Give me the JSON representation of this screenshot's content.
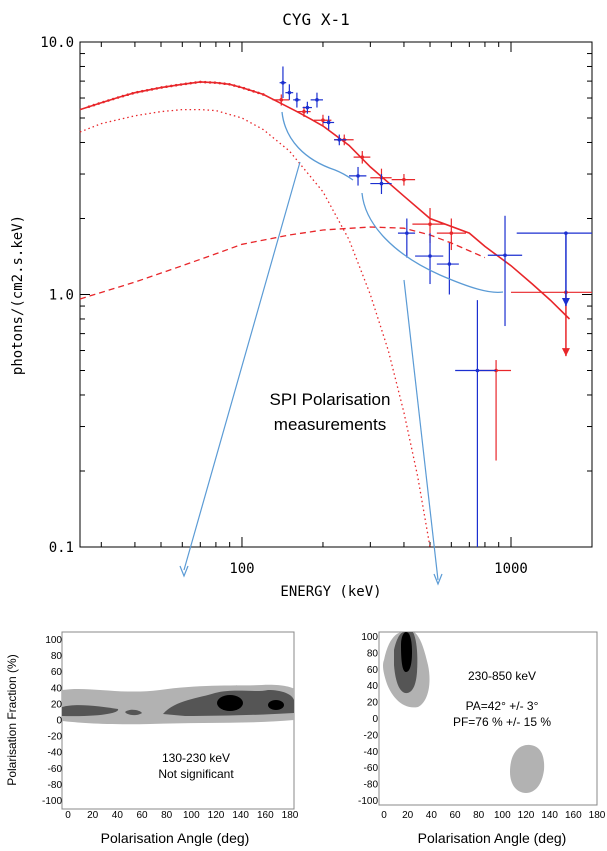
{
  "chart_data": [
    {
      "type": "scatter",
      "title": "CYG X-1",
      "xlabel": "ENERGY (keV)",
      "ylabel": "photons/(cm2.s.keV)",
      "x_scale": "log",
      "y_scale": "log",
      "xlim": [
        25,
        2000
      ],
      "ylim": [
        0.1,
        10
      ],
      "x_ticks": [
        {
          "v": 100,
          "label": "100"
        },
        {
          "v": 1000,
          "label": "1000"
        }
      ],
      "y_ticks": [
        {
          "v": 10,
          "label": "10.0"
        },
        {
          "v": 1,
          "label": "1.0"
        },
        {
          "v": 0.1,
          "label": "0.1"
        }
      ],
      "annotation": [
        "SPI Polarisation",
        "measurements"
      ],
      "colors": {
        "red": "#e8262a",
        "blue": "#1b2fd0",
        "bracket": "#5b9bd5",
        "arrow": "#5b9bd5"
      },
      "model_total": [
        [
          25,
          5.4
        ],
        [
          30,
          5.75
        ],
        [
          35,
          6.05
        ],
        [
          40,
          6.3
        ],
        [
          50,
          6.6
        ],
        [
          60,
          6.8
        ],
        [
          70,
          6.95
        ],
        [
          80,
          6.9
        ],
        [
          90,
          6.8
        ],
        [
          100,
          6.6
        ],
        [
          120,
          6.2
        ],
        [
          140,
          5.7
        ],
        [
          160,
          5.3
        ],
        [
          180,
          4.95
        ],
        [
          200,
          4.65
        ],
        [
          250,
          3.9
        ],
        [
          300,
          3.2
        ],
        [
          400,
          2.45
        ],
        [
          500,
          2.0
        ],
        [
          700,
          1.75
        ],
        [
          800,
          1.55
        ],
        [
          1000,
          1.3
        ],
        [
          1200,
          1.1
        ],
        [
          1400,
          0.95
        ],
        [
          1650,
          0.8
        ]
      ],
      "model_thermal": [
        [
          25,
          4.4
        ],
        [
          30,
          4.75
        ],
        [
          40,
          5.1
        ],
        [
          50,
          5.3
        ],
        [
          60,
          5.4
        ],
        [
          70,
          5.4
        ],
        [
          80,
          5.35
        ],
        [
          100,
          5.0
        ],
        [
          120,
          4.5
        ],
        [
          150,
          3.7
        ],
        [
          200,
          2.55
        ],
        [
          250,
          1.65
        ],
        [
          300,
          1.0
        ],
        [
          350,
          0.6
        ],
        [
          400,
          0.34
        ],
        [
          450,
          0.19
        ],
        [
          500,
          0.1
        ]
      ],
      "model_powerlaw": [
        [
          25,
          0.96
        ],
        [
          40,
          1.12
        ],
        [
          60,
          1.3
        ],
        [
          80,
          1.45
        ],
        [
          100,
          1.58
        ],
        [
          150,
          1.72
        ],
        [
          200,
          1.8
        ],
        [
          300,
          1.85
        ],
        [
          400,
          1.83
        ],
        [
          500,
          1.72
        ],
        [
          600,
          1.6
        ],
        [
          800,
          1.4
        ]
      ],
      "red_points": [
        [
          140,
          5.9
        ],
        [
          170,
          5.3
        ],
        [
          200,
          4.9
        ],
        [
          240,
          4.1
        ],
        [
          280,
          3.5
        ],
        [
          330,
          2.9
        ],
        [
          400,
          2.85
        ],
        [
          500,
          1.9
        ],
        [
          600,
          1.75
        ],
        [
          880,
          0.5
        ],
        [
          1600,
          1.02
        ]
      ],
      "red_points_xerr": [
        [
          130,
          150
        ],
        [
          160,
          180
        ],
        [
          185,
          215
        ],
        [
          220,
          260
        ],
        [
          260,
          300
        ],
        [
          300,
          360
        ],
        [
          360,
          440
        ],
        [
          430,
          570
        ],
        [
          530,
          680
        ],
        [
          760,
          1000
        ],
        [
          1000,
          2000
        ]
      ],
      "red_points_yerr": [
        [
          5.6,
          6.2
        ],
        [
          5.05,
          5.55
        ],
        [
          4.65,
          5.15
        ],
        [
          3.9,
          4.3
        ],
        [
          3.3,
          3.7
        ],
        [
          2.65,
          3.15
        ],
        [
          2.7,
          3.0
        ],
        [
          1.6,
          2.2
        ],
        [
          1.5,
          2.0
        ],
        [
          0.22,
          0.55
        ],
        [
          1.0,
          1.04
        ]
      ],
      "blue_points": [
        [
          142,
          6.9
        ],
        [
          150,
          6.3
        ],
        [
          160,
          5.9
        ],
        [
          175,
          5.5
        ],
        [
          190,
          5.9
        ],
        [
          210,
          4.8
        ],
        [
          230,
          4.1
        ],
        [
          270,
          2.95
        ],
        [
          330,
          2.75
        ],
        [
          410,
          1.75
        ],
        [
          500,
          1.42
        ],
        [
          590,
          1.32
        ],
        [
          750,
          0.5
        ],
        [
          950,
          1.43
        ],
        [
          1600,
          1.75
        ]
      ],
      "blue_points_xerr": [
        [
          138,
          146
        ],
        [
          145,
          155
        ],
        [
          155,
          165
        ],
        [
          168,
          182
        ],
        [
          180,
          200
        ],
        [
          200,
          220
        ],
        [
          220,
          245
        ],
        [
          250,
          290
        ],
        [
          300,
          360
        ],
        [
          380,
          440
        ],
        [
          440,
          560
        ],
        [
          530,
          640
        ],
        [
          620,
          880
        ],
        [
          820,
          1100
        ],
        [
          1050,
          2000
        ]
      ],
      "blue_points_yerr": [
        [
          6.0,
          8.0
        ],
        [
          5.9,
          6.8
        ],
        [
          5.5,
          6.3
        ],
        [
          5.2,
          5.8
        ],
        [
          5.5,
          6.3
        ],
        [
          4.5,
          5.1
        ],
        [
          3.9,
          4.3
        ],
        [
          2.7,
          3.2
        ],
        [
          2.5,
          3.0
        ],
        [
          1.4,
          2.0
        ],
        [
          1.1,
          1.75
        ],
        [
          1.0,
          1.6
        ],
        [
          0.1,
          0.95
        ],
        [
          0.75,
          2.05
        ],
        [
          1.75,
          1.75
        ]
      ],
      "upper_limits": [
        {
          "x": 1600,
          "y_from": 1.02,
          "y_to": 0.57,
          "color": "red"
        },
        {
          "x": 1600,
          "y_from": 1.75,
          "y_to": 0.9,
          "color": "blue"
        }
      ]
    },
    {
      "type": "heatmap",
      "title": "",
      "xlabel": "Polarisation Angle (deg)",
      "ylabel": "Polarisation Fraction (%)",
      "xlim": [
        0,
        180
      ],
      "ylim": [
        -100,
        100
      ],
      "x_ticks": [
        0,
        20,
        40,
        60,
        80,
        100,
        120,
        140,
        160,
        180
      ],
      "y_ticks": [
        100,
        80,
        60,
        40,
        20,
        0,
        -20,
        -40,
        -60,
        -80,
        -100
      ],
      "annotation": [
        "130-230 keV",
        "Not significant"
      ],
      "levels": {
        "light": "#b2b2b2",
        "mid": "#555555",
        "dark": "#000000"
      }
    },
    {
      "type": "heatmap",
      "title": "",
      "xlabel": "Polarisation Angle (deg)",
      "ylabel": "",
      "xlim": [
        0,
        180
      ],
      "ylim": [
        -100,
        100
      ],
      "x_ticks": [
        0,
        20,
        40,
        60,
        80,
        100,
        120,
        140,
        160,
        180
      ],
      "y_ticks": [
        100,
        80,
        60,
        40,
        20,
        0,
        -20,
        -40,
        -60,
        -80,
        -100
      ],
      "annotation": [
        "230-850 keV",
        "PA=42° +/- 3°",
        "PF=76 % +/- 15 %"
      ],
      "levels": {
        "light": "#b2b2b2",
        "mid": "#555555",
        "dark": "#000000"
      }
    }
  ]
}
